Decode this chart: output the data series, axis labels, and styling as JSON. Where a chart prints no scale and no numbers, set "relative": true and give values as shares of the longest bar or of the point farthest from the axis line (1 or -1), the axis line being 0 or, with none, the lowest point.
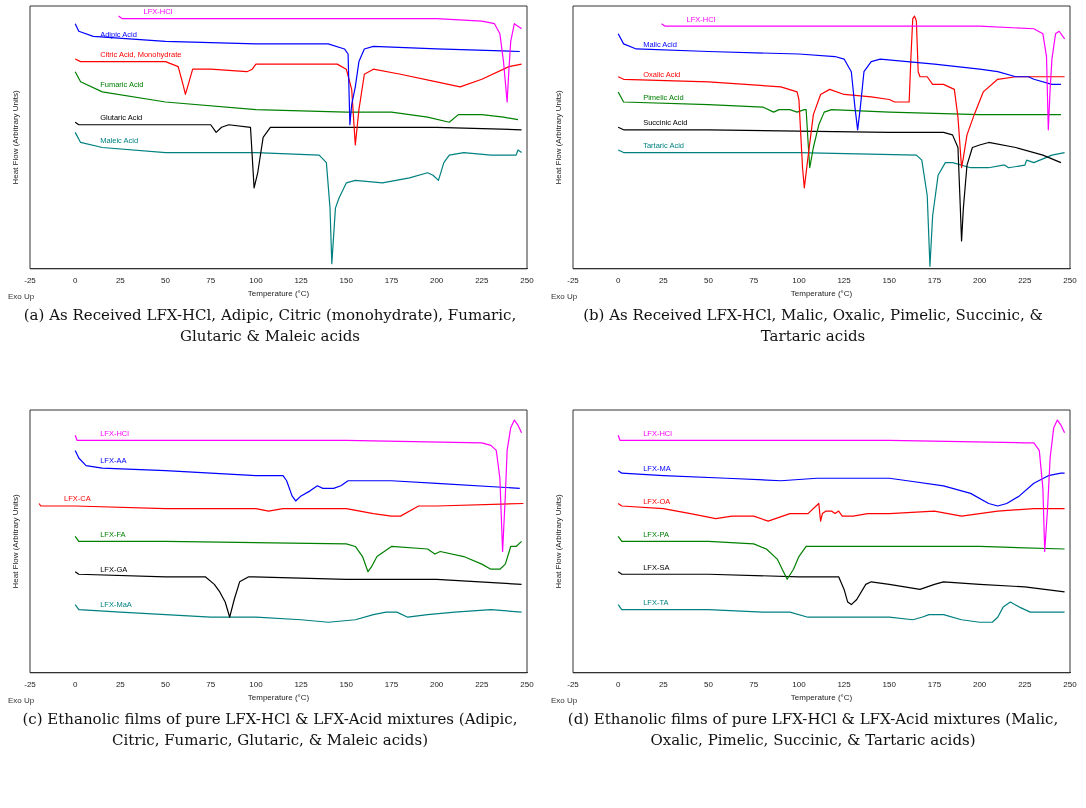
{
  "chart_data": [
    {
      "type": "line",
      "relative": true,
      "xlabel": "Temperature (°C)",
      "ylabel": "Heat Flow (Arbitrary Units)",
      "xlim": [
        -25,
        250
      ],
      "xticks": [
        -25,
        0,
        25,
        50,
        75,
        100,
        125,
        150,
        175,
        200,
        225,
        250
      ],
      "tick_labels": "x",
      "annotations": [
        "Exo Up",
        "(a) As Received LFX-HCl, Adipic, Citric (monohydrate), Fumaric, Glutaric & Maleic acids"
      ],
      "series": [
        {
          "name": "LFX-HCl",
          "color": "#ff00ff",
          "x": [
            24,
            26,
            100,
            200,
            225,
            232,
            235,
            237,
            239,
            240,
            241,
            243,
            245,
            247
          ],
          "values": [
            1.0,
            0.99,
            0.99,
            0.99,
            0.98,
            0.97,
            0.93,
            0.82,
            0.66,
            0.79,
            0.9,
            0.97,
            0.96,
            0.95
          ]
        },
        {
          "name": "Adipic Acid",
          "color": "#0000ff",
          "x": [
            0,
            2,
            10,
            50,
            100,
            140,
            149,
            151,
            152,
            153,
            155,
            157,
            160,
            165,
            200,
            246
          ],
          "values": [
            0.97,
            0.94,
            0.92,
            0.9,
            0.89,
            0.89,
            0.87,
            0.85,
            0.57,
            0.65,
            0.72,
            0.82,
            0.87,
            0.88,
            0.87,
            0.86
          ]
        },
        {
          "name": "Citric Acid, Monohydrate",
          "color": "#ff0000",
          "x": [
            0,
            3,
            50,
            57,
            60,
            61,
            63,
            65,
            75,
            95,
            98,
            100,
            120,
            145,
            150,
            153,
            155,
            157,
            160,
            165,
            180,
            200,
            213,
            225,
            240,
            247
          ],
          "values": [
            0.83,
            0.82,
            0.82,
            0.8,
            0.72,
            0.69,
            0.74,
            0.79,
            0.79,
            0.78,
            0.79,
            0.81,
            0.81,
            0.81,
            0.79,
            0.71,
            0.49,
            0.63,
            0.77,
            0.79,
            0.77,
            0.74,
            0.72,
            0.75,
            0.8,
            0.81
          ]
        },
        {
          "name": "Fumaric Acid",
          "color": "#008000",
          "x": [
            0,
            3,
            15,
            50,
            100,
            150,
            175,
            195,
            207,
            212,
            225,
            237,
            245
          ],
          "values": [
            0.78,
            0.74,
            0.7,
            0.66,
            0.63,
            0.62,
            0.62,
            0.6,
            0.58,
            0.61,
            0.61,
            0.6,
            0.59
          ]
        },
        {
          "name": "Glutaric Acid",
          "color": "#000000",
          "x": [
            0,
            2,
            50,
            75,
            78,
            81,
            85,
            97,
            99,
            101,
            104,
            108,
            150,
            200,
            247
          ],
          "values": [
            0.58,
            0.57,
            0.57,
            0.57,
            0.54,
            0.56,
            0.57,
            0.56,
            0.32,
            0.38,
            0.52,
            0.56,
            0.56,
            0.56,
            0.55
          ]
        },
        {
          "name": "Maleic Acid",
          "color": "#008080",
          "x": [
            0,
            3,
            15,
            50,
            100,
            135,
            139,
            141,
            142,
            144,
            146,
            150,
            155,
            170,
            185,
            195,
            198,
            201,
            204,
            207,
            215,
            230,
            244,
            245,
            247
          ],
          "values": [
            0.54,
            0.5,
            0.48,
            0.46,
            0.46,
            0.45,
            0.42,
            0.24,
            0.02,
            0.24,
            0.28,
            0.34,
            0.35,
            0.34,
            0.36,
            0.38,
            0.37,
            0.35,
            0.42,
            0.45,
            0.46,
            0.45,
            0.45,
            0.47,
            0.46
          ]
        }
      ]
    },
    {
      "type": "line",
      "relative": true,
      "xlabel": "Temperature (°C)",
      "ylabel": "Heat Flow (Arbitrary Units)",
      "xlim": [
        -25,
        250
      ],
      "xticks": [
        -25,
        0,
        25,
        50,
        75,
        100,
        125,
        150,
        175,
        200,
        225,
        250
      ],
      "tick_labels": "x",
      "annotations": [
        "Exo Up",
        "(b) As Received LFX-HCl, Malic, Oxalic, Pimelic, Succinic, & Tartaric acids"
      ],
      "series": [
        {
          "name": "LFX-HCl",
          "color": "#ff00ff",
          "x": [
            24,
            26,
            100,
            200,
            230,
            235,
            237,
            238,
            239,
            240,
            242,
            244,
            247
          ],
          "values": [
            0.97,
            0.96,
            0.96,
            0.96,
            0.95,
            0.93,
            0.84,
            0.55,
            0.71,
            0.83,
            0.93,
            0.94,
            0.91
          ]
        },
        {
          "name": "Malic Acid",
          "color": "#0000ff",
          "x": [
            0,
            3,
            10,
            50,
            100,
            120,
            125,
            129,
            131,
            132.5,
            134,
            136,
            140,
            145,
            175,
            200,
            210,
            220,
            227,
            230,
            240,
            245
          ],
          "values": [
            0.93,
            0.89,
            0.87,
            0.86,
            0.85,
            0.84,
            0.83,
            0.78,
            0.64,
            0.55,
            0.64,
            0.78,
            0.82,
            0.83,
            0.81,
            0.79,
            0.78,
            0.76,
            0.76,
            0.75,
            0.73,
            0.73
          ]
        },
        {
          "name": "Oxalic Acid",
          "color": "#ff0000",
          "x": [
            0,
            3,
            50,
            90,
            99,
            100,
            102,
            103,
            105,
            108,
            112,
            117,
            125,
            140,
            150,
            153,
            161,
            162,
            163,
            164,
            165,
            166,
            167,
            171,
            174,
            180,
            186,
            188,
            190,
            191,
            193,
            197,
            202,
            210,
            220,
            247
          ],
          "values": [
            0.76,
            0.75,
            0.74,
            0.72,
            0.7,
            0.67,
            0.4,
            0.32,
            0.44,
            0.61,
            0.69,
            0.71,
            0.69,
            0.68,
            0.67,
            0.66,
            0.66,
            0.84,
            0.99,
            1.0,
            0.98,
            0.78,
            0.76,
            0.76,
            0.73,
            0.73,
            0.71,
            0.6,
            0.4,
            0.44,
            0.53,
            0.61,
            0.7,
            0.75,
            0.76,
            0.76
          ]
        },
        {
          "name": "Pimelic Acid",
          "color": "#008000",
          "x": [
            0,
            3,
            50,
            80,
            86,
            89,
            95,
            99,
            103,
            104,
            105,
            106,
            108,
            111,
            114,
            118,
            150,
            200,
            245
          ],
          "values": [
            0.7,
            0.66,
            0.65,
            0.64,
            0.62,
            0.63,
            0.63,
            0.62,
            0.63,
            0.63,
            0.51,
            0.4,
            0.48,
            0.57,
            0.62,
            0.63,
            0.62,
            0.61,
            0.61
          ]
        },
        {
          "name": "Succinic Acid",
          "color": "#000000",
          "x": [
            0,
            3,
            50,
            150,
            180,
            185,
            188,
            189,
            190,
            191,
            193,
            196,
            200,
            205,
            220,
            235,
            245
          ],
          "values": [
            0.56,
            0.55,
            0.55,
            0.54,
            0.54,
            0.53,
            0.48,
            0.3,
            0.11,
            0.24,
            0.41,
            0.48,
            0.49,
            0.5,
            0.48,
            0.45,
            0.42
          ]
        },
        {
          "name": "Tartaric Acid",
          "color": "#008080",
          "x": [
            0,
            3,
            50,
            100,
            165,
            168,
            171,
            172.5,
            174,
            177,
            181,
            185,
            195,
            205,
            213,
            214,
            216,
            225,
            226,
            230,
            240,
            247
          ],
          "values": [
            0.47,
            0.46,
            0.46,
            0.46,
            0.45,
            0.43,
            0.29,
            0.01,
            0.21,
            0.37,
            0.42,
            0.42,
            0.4,
            0.4,
            0.41,
            0.41,
            0.4,
            0.41,
            0.43,
            0.42,
            0.45,
            0.46
          ]
        }
      ]
    },
    {
      "type": "line",
      "relative": true,
      "xlabel": "Temperature (°C)",
      "ylabel": "Heat Flow (Arbitrary Units)",
      "xlim": [
        -25,
        250
      ],
      "xticks": [
        -25,
        0,
        25,
        50,
        75,
        100,
        125,
        150,
        175,
        200,
        225,
        250
      ],
      "tick_labels": "x",
      "annotations": [
        "Exo Up",
        "(c) Ethanolic films of pure LFX-HCl & LFX-Acid mixtures (Adipic, Citric, Fumaric, Glutaric, & Maleic acids)"
      ],
      "series": [
        {
          "name": "LFX-HCl",
          "color": "#ff00ff",
          "x": [
            0,
            1,
            50,
            150,
            225,
            230,
            233,
            235,
            236.5,
            238,
            239,
            241,
            243,
            245,
            247
          ],
          "values": [
            0.94,
            0.92,
            0.92,
            0.92,
            0.91,
            0.9,
            0.88,
            0.77,
            0.48,
            0.7,
            0.88,
            0.97,
            1.0,
            0.98,
            0.95
          ]
        },
        {
          "name": "LFX-AA",
          "color": "#0000ff",
          "x": [
            0,
            2,
            6,
            15,
            50,
            100,
            115,
            117,
            120,
            122,
            125,
            130,
            134,
            137,
            143,
            147,
            151,
            175,
            200,
            246
          ],
          "values": [
            0.88,
            0.85,
            0.82,
            0.81,
            0.8,
            0.78,
            0.78,
            0.76,
            0.7,
            0.68,
            0.7,
            0.72,
            0.74,
            0.73,
            0.73,
            0.74,
            0.76,
            0.76,
            0.75,
            0.73
          ]
        },
        {
          "name": "LFX-CA",
          "color": "#ff0000",
          "x": [
            -20,
            -19,
            0,
            50,
            100,
            107,
            115,
            150,
            165,
            175,
            180,
            190,
            200,
            248
          ],
          "values": [
            0.67,
            0.66,
            0.66,
            0.65,
            0.65,
            0.64,
            0.65,
            0.65,
            0.63,
            0.62,
            0.62,
            0.66,
            0.66,
            0.67
          ]
        },
        {
          "name": "LFX-FA",
          "color": "#008000",
          "x": [
            0,
            2,
            50,
            150,
            155,
            159,
            162,
            164,
            167,
            175,
            195,
            199,
            202,
            215,
            225,
            230,
            235,
            238,
            241,
            244,
            247
          ],
          "values": [
            0.54,
            0.52,
            0.52,
            0.51,
            0.5,
            0.46,
            0.4,
            0.42,
            0.46,
            0.5,
            0.49,
            0.47,
            0.48,
            0.46,
            0.43,
            0.41,
            0.41,
            0.43,
            0.5,
            0.5,
            0.52
          ]
        },
        {
          "name": "LFX-GA",
          "color": "#000000",
          "x": [
            0,
            2,
            50,
            72,
            77,
            80,
            83,
            85.5,
            88,
            91,
            96,
            150,
            200,
            247
          ],
          "values": [
            0.4,
            0.39,
            0.38,
            0.38,
            0.35,
            0.32,
            0.28,
            0.22,
            0.29,
            0.36,
            0.38,
            0.37,
            0.37,
            0.35
          ]
        },
        {
          "name": "LFX-MaA",
          "color": "#008080",
          "x": [
            0,
            2,
            25,
            50,
            75,
            87,
            100,
            125,
            140,
            155,
            165,
            172,
            178,
            184,
            195,
            210,
            230,
            247
          ],
          "values": [
            0.27,
            0.25,
            0.24,
            0.23,
            0.22,
            0.22,
            0.22,
            0.21,
            0.2,
            0.21,
            0.23,
            0.24,
            0.24,
            0.22,
            0.23,
            0.24,
            0.25,
            0.24
          ]
        }
      ]
    },
    {
      "type": "line",
      "relative": true,
      "xlabel": "Temperature (°C)",
      "ylabel": "Heat Flow (Arbitrary Units)",
      "xlim": [
        -25,
        250
      ],
      "xticks": [
        -25,
        0,
        25,
        50,
        75,
        100,
        125,
        150,
        175,
        200,
        225,
        250
      ],
      "tick_labels": "x",
      "annotations": [
        "Exo Up",
        "(d) Ethanolic films of pure LFX-HCl & LFX-Acid mixtures (Malic, Oxalic, Pimelic, Succinic, & Tartaric acids)"
      ],
      "series": [
        {
          "name": "LFX-HCl",
          "color": "#ff00ff",
          "x": [
            0,
            1,
            50,
            150,
            225,
            230,
            233,
            235,
            236,
            237.5,
            239,
            241,
            243,
            245,
            247
          ],
          "values": [
            0.94,
            0.92,
            0.92,
            0.92,
            0.91,
            0.91,
            0.88,
            0.73,
            0.48,
            0.64,
            0.85,
            0.97,
            1.0,
            0.98,
            0.95
          ]
        },
        {
          "name": "LFX-MA",
          "color": "#0000ff",
          "x": [
            0,
            2,
            25,
            60,
            90,
            110,
            125,
            150,
            160,
            180,
            195,
            205,
            210,
            215,
            222,
            230,
            238,
            245,
            247
          ],
          "values": [
            0.8,
            0.79,
            0.78,
            0.77,
            0.76,
            0.77,
            0.77,
            0.77,
            0.76,
            0.74,
            0.71,
            0.67,
            0.66,
            0.67,
            0.7,
            0.75,
            0.78,
            0.79,
            0.79
          ]
        },
        {
          "name": "LFX-OA",
          "color": "#ff0000",
          "x": [
            0,
            2,
            25,
            40,
            54,
            63,
            75,
            83,
            95,
            105,
            111,
            112,
            113,
            115,
            118,
            120,
            122,
            124,
            130,
            138,
            150,
            175,
            190,
            210,
            230,
            247
          ],
          "values": [
            0.67,
            0.66,
            0.65,
            0.63,
            0.61,
            0.62,
            0.62,
            0.6,
            0.63,
            0.63,
            0.67,
            0.6,
            0.63,
            0.64,
            0.64,
            0.63,
            0.64,
            0.62,
            0.62,
            0.63,
            0.63,
            0.64,
            0.62,
            0.64,
            0.65,
            0.65
          ]
        },
        {
          "name": "LFX-PA",
          "color": "#008000",
          "x": [
            0,
            2,
            50,
            75,
            82,
            88,
            93.5,
            97,
            100,
            104,
            150,
            200,
            247
          ],
          "values": [
            0.54,
            0.52,
            0.52,
            0.51,
            0.49,
            0.45,
            0.37,
            0.41,
            0.46,
            0.5,
            0.5,
            0.5,
            0.49
          ]
        },
        {
          "name": "LFX-SA",
          "color": "#000000",
          "x": [
            0,
            2,
            50,
            100,
            122,
            125,
            127,
            129,
            132,
            137,
            140,
            150,
            167,
            175,
            180,
            200,
            225,
            247
          ],
          "values": [
            0.4,
            0.39,
            0.39,
            0.38,
            0.38,
            0.33,
            0.28,
            0.27,
            0.29,
            0.35,
            0.36,
            0.35,
            0.33,
            0.35,
            0.36,
            0.35,
            0.34,
            0.32
          ]
        },
        {
          "name": "LFX-TA",
          "color": "#008080",
          "x": [
            0,
            2,
            50,
            80,
            95,
            105,
            120,
            135,
            150,
            163,
            168,
            172,
            180,
            190,
            200,
            207,
            210,
            213,
            217,
            222,
            228,
            235,
            247
          ],
          "values": [
            0.27,
            0.25,
            0.25,
            0.24,
            0.24,
            0.22,
            0.22,
            0.22,
            0.22,
            0.21,
            0.22,
            0.23,
            0.23,
            0.21,
            0.2,
            0.2,
            0.22,
            0.26,
            0.28,
            0.26,
            0.24,
            0.24,
            0.24
          ]
        }
      ]
    }
  ]
}
